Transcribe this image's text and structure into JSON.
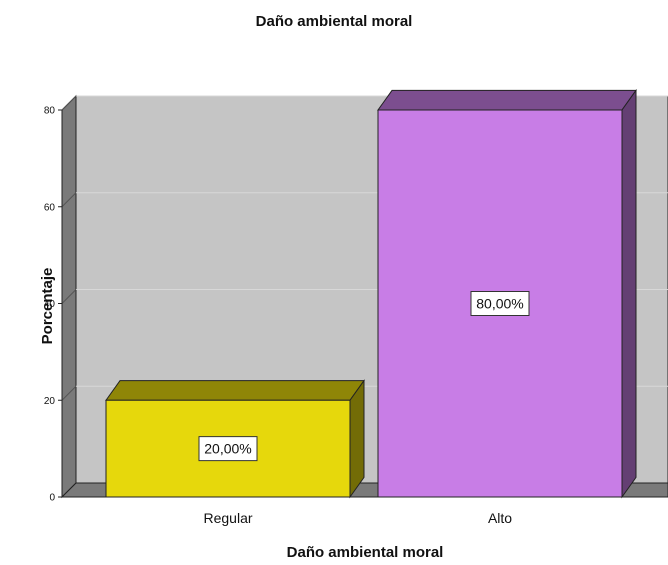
{
  "chart_data": {
    "type": "bar",
    "title": "Daño ambiental moral",
    "xlabel": "Daño ambiental moral",
    "ylabel": "Porcentaje",
    "categories": [
      "Regular",
      "Alto"
    ],
    "values": [
      20,
      80
    ],
    "data_labels": [
      "20,00%",
      "80,00%"
    ],
    "colors": [
      "#e6d80c",
      "#c87de6"
    ],
    "ylim": [
      0,
      80
    ],
    "yticks": [
      "0",
      "20",
      "40",
      "60",
      "80"
    ],
    "grid": true,
    "style": "3d"
  }
}
